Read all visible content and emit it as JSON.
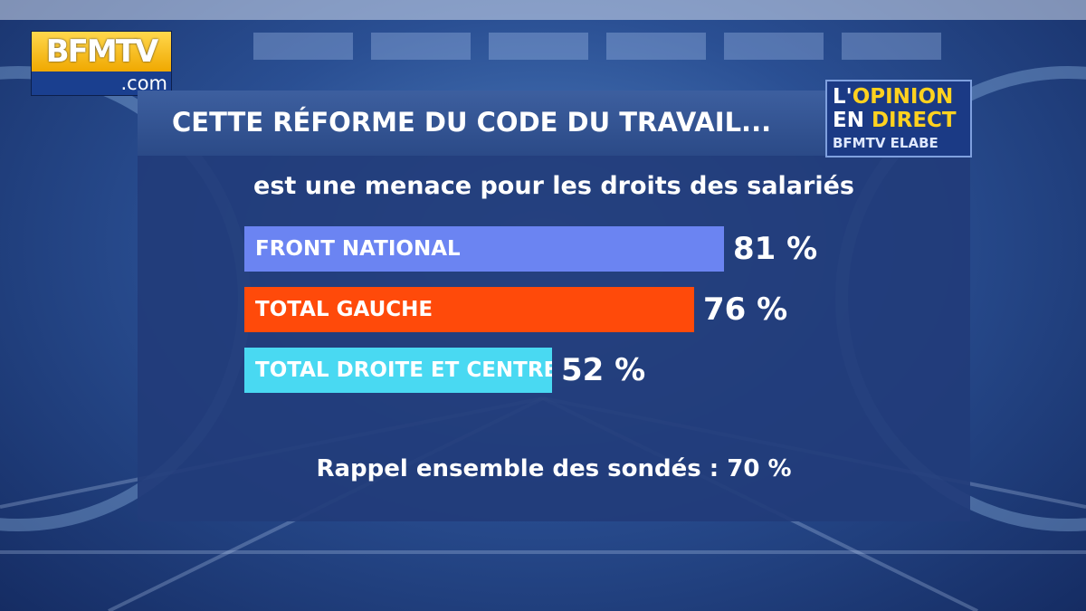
{
  "logo": {
    "top": "BFMTV",
    "bottom": ".com"
  },
  "badge": {
    "line1_a": "L'",
    "line1_b": "OPINION",
    "line2_a": "EN ",
    "line2_b": "DIRECT",
    "line3_a": "BFMTV",
    "line3_b": " ELABE"
  },
  "colors": {
    "front_national": "#6b84f2",
    "total_gauche": "#ff4a0a",
    "total_droite_centre": "#49d9f2"
  },
  "chart_data": {
    "type": "bar",
    "orientation": "horizontal",
    "title": "CETTE RÉFORME DU CODE DU TRAVAIL...",
    "subtitle": "est une menace pour les droits des salariés",
    "categories": [
      "FRONT NATIONAL",
      "TOTAL GAUCHE",
      "TOTAL DROITE ET CENTRE"
    ],
    "values": [
      81,
      76,
      52
    ],
    "value_labels": [
      "81 %",
      "76 %",
      "52 %"
    ],
    "colors": [
      "#6b84f2",
      "#ff4a0a",
      "#49d9f2"
    ],
    "xlim": [
      0,
      100
    ],
    "grid": false,
    "annotation": "Rappel ensemble des sondés : 70 %"
  }
}
